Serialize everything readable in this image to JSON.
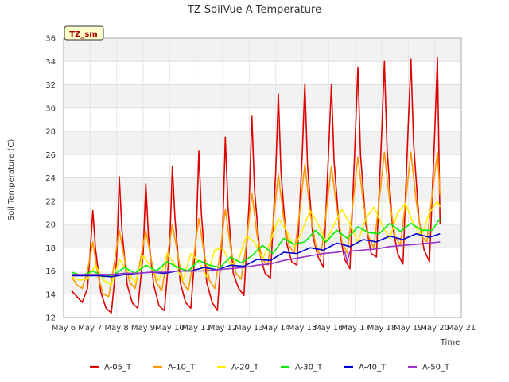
{
  "chart_data": {
    "type": "line",
    "title": "TZ SoilVue A Temperature",
    "xlabel": "Time",
    "ylabel": "Soil Temperature (C)",
    "badge": "TZ_sm",
    "ylim": [
      12,
      36
    ],
    "yticks": [
      12,
      14,
      16,
      18,
      20,
      22,
      24,
      26,
      28,
      30,
      32,
      34,
      36
    ],
    "xlim": [
      6,
      21
    ],
    "xticks": [
      {
        "x": 6,
        "label": "May 6"
      },
      {
        "x": 7,
        "label": "May 7"
      },
      {
        "x": 8,
        "label": "May 8"
      },
      {
        "x": 9,
        "label": "May 9"
      },
      {
        "x": 10,
        "label": "May 10"
      },
      {
        "x": 11,
        "label": "May 11"
      },
      {
        "x": 12,
        "label": "May 12"
      },
      {
        "x": 13,
        "label": "May 13"
      },
      {
        "x": 14,
        "label": "May 14"
      },
      {
        "x": 15,
        "label": "May 15"
      },
      {
        "x": 16,
        "label": "May 16"
      },
      {
        "x": 17,
        "label": "May 17"
      },
      {
        "x": 18,
        "label": "May 18"
      },
      {
        "x": 19,
        "label": "May 19"
      },
      {
        "x": 20,
        "label": "May 20"
      },
      {
        "x": 21,
        "label": "May 21"
      }
    ],
    "grid": true,
    "legend_position": "bottom",
    "series": [
      {
        "name": "A-05_T",
        "color": "#dd0000",
        "x": [
          6.3,
          6.5,
          6.7,
          6.9,
          7.0,
          7.1,
          7.2,
          7.4,
          7.6,
          7.8,
          8.0,
          8.1,
          8.2,
          8.4,
          8.6,
          8.8,
          9.0,
          9.1,
          9.2,
          9.4,
          9.6,
          9.8,
          10.0,
          10.1,
          10.2,
          10.4,
          10.6,
          10.8,
          11.0,
          11.1,
          11.2,
          11.4,
          11.6,
          11.8,
          12.0,
          12.1,
          12.2,
          12.4,
          12.6,
          12.8,
          13.0,
          13.1,
          13.2,
          13.4,
          13.6,
          13.8,
          14.0,
          14.1,
          14.2,
          14.4,
          14.6,
          14.8,
          15.0,
          15.1,
          15.2,
          15.4,
          15.6,
          15.8,
          16.0,
          16.1,
          16.2,
          16.4,
          16.6,
          16.8,
          17.0,
          17.1,
          17.2,
          17.4,
          17.6,
          17.8,
          18.0,
          18.1,
          18.2,
          18.4,
          18.6,
          18.8,
          19.0,
          19.1,
          19.2,
          19.4,
          19.6,
          19.8,
          20.0,
          20.1,
          20.2
        ],
        "y": [
          14.3,
          13.8,
          13.3,
          14.5,
          17.5,
          21.2,
          18.0,
          14.2,
          12.8,
          12.4,
          17.0,
          24.1,
          19.5,
          14.8,
          13.2,
          12.8,
          17.5,
          23.5,
          19.0,
          14.8,
          13.0,
          12.6,
          18.0,
          25.0,
          20.5,
          15.0,
          13.3,
          12.8,
          19.0,
          26.3,
          20.8,
          15.0,
          13.3,
          12.6,
          19.5,
          27.5,
          21.5,
          15.8,
          14.5,
          13.9,
          22.0,
          29.3,
          23.0,
          17.5,
          15.8,
          15.4,
          24.5,
          31.2,
          24.5,
          18.5,
          16.8,
          16.5,
          26.0,
          32.1,
          25.0,
          19.0,
          17.2,
          16.3,
          26.5,
          32.0,
          25.5,
          19.5,
          17.0,
          16.2,
          27.5,
          33.5,
          26.0,
          20.0,
          17.5,
          17.2,
          28.0,
          34.0,
          26.5,
          20.0,
          17.5,
          16.6,
          28.5,
          34.2,
          27.0,
          20.5,
          17.8,
          16.8,
          28.0,
          34.3,
          20.0
        ]
      },
      {
        "name": "A-10_T",
        "color": "#ff9900",
        "x": [
          6.3,
          6.5,
          6.7,
          6.9,
          7.1,
          7.3,
          7.5,
          7.7,
          7.9,
          8.1,
          8.3,
          8.5,
          8.7,
          8.9,
          9.1,
          9.3,
          9.5,
          9.7,
          9.9,
          10.1,
          10.3,
          10.5,
          10.7,
          10.9,
          11.1,
          11.3,
          11.5,
          11.7,
          11.9,
          12.1,
          12.3,
          12.5,
          12.7,
          12.9,
          13.1,
          13.3,
          13.5,
          13.7,
          13.9,
          14.1,
          14.3,
          14.5,
          14.7,
          14.9,
          15.1,
          15.3,
          15.5,
          15.7,
          15.9,
          16.1,
          16.3,
          16.5,
          16.7,
          16.9,
          17.1,
          17.3,
          17.5,
          17.7,
          17.9,
          18.1,
          18.3,
          18.5,
          18.7,
          18.9,
          19.1,
          19.3,
          19.5,
          19.7,
          19.9,
          20.1,
          20.2
        ],
        "y": [
          15.5,
          14.8,
          14.5,
          16.0,
          18.5,
          15.5,
          14.0,
          13.8,
          16.5,
          19.5,
          17.0,
          15.0,
          14.5,
          17.0,
          19.5,
          17.0,
          15.0,
          14.3,
          17.0,
          20.0,
          17.5,
          15.0,
          14.3,
          17.0,
          20.5,
          17.5,
          15.2,
          14.5,
          17.5,
          21.3,
          18.0,
          15.8,
          15.3,
          18.5,
          22.7,
          19.0,
          17.0,
          16.5,
          20.0,
          24.3,
          20.5,
          18.2,
          17.5,
          21.0,
          25.2,
          21.0,
          18.3,
          17.2,
          21.0,
          25.0,
          21.5,
          18.5,
          17.5,
          21.5,
          25.8,
          22.0,
          19.0,
          18.0,
          22.0,
          26.2,
          22.0,
          19.0,
          18.2,
          22.0,
          26.2,
          22.0,
          19.0,
          18.5,
          22.5,
          26.2,
          22.5
        ]
      },
      {
        "name": "A-20_T",
        "color": "#ffee00",
        "x": [
          6.3,
          6.6,
          6.9,
          7.2,
          7.5,
          7.8,
          8.1,
          8.4,
          8.7,
          9.0,
          9.3,
          9.6,
          9.9,
          10.2,
          10.5,
          10.8,
          11.1,
          11.4,
          11.7,
          12.0,
          12.3,
          12.6,
          12.9,
          13.2,
          13.5,
          13.8,
          14.1,
          14.4,
          14.7,
          15.0,
          15.3,
          15.6,
          15.9,
          16.2,
          16.5,
          16.8,
          17.1,
          17.4,
          17.7,
          18.0,
          18.3,
          18.6,
          18.9,
          19.2,
          19.5,
          19.8,
          20.1,
          20.2
        ],
        "y": [
          15.5,
          15.2,
          15.3,
          16.5,
          15.2,
          14.8,
          17.0,
          16.0,
          15.0,
          17.3,
          16.3,
          15.2,
          17.5,
          16.5,
          15.2,
          17.5,
          16.8,
          15.5,
          17.8,
          18.0,
          16.5,
          17.0,
          19.0,
          18.5,
          17.0,
          18.5,
          20.5,
          19.5,
          18.0,
          19.5,
          21.2,
          20.0,
          18.5,
          20.0,
          21.3,
          20.0,
          18.5,
          20.5,
          21.5,
          20.0,
          18.8,
          21.0,
          21.8,
          20.0,
          19.0,
          21.0,
          22.0,
          21.5
        ]
      },
      {
        "name": "A-30_T",
        "color": "#00ee00",
        "x": [
          6.3,
          6.7,
          7.1,
          7.5,
          7.9,
          8.3,
          8.7,
          9.1,
          9.5,
          9.9,
          10.3,
          10.7,
          11.1,
          11.5,
          11.9,
          12.3,
          12.7,
          13.1,
          13.5,
          13.9,
          14.3,
          14.7,
          15.1,
          15.5,
          15.9,
          16.3,
          16.7,
          17.1,
          17.5,
          17.9,
          18.3,
          18.7,
          19.1,
          19.5,
          19.9,
          20.2
        ],
        "y": [
          15.9,
          15.6,
          16.0,
          15.5,
          15.7,
          16.3,
          15.8,
          16.5,
          16.0,
          16.8,
          16.3,
          16.0,
          16.9,
          16.5,
          16.3,
          17.2,
          16.7,
          17.3,
          18.2,
          17.5,
          18.8,
          18.3,
          18.5,
          19.5,
          18.5,
          19.5,
          18.8,
          19.8,
          19.3,
          19.2,
          20.1,
          19.4,
          20.1,
          19.5,
          19.5,
          20.5
        ]
      },
      {
        "name": "A-40_T",
        "color": "#0000cc",
        "x": [
          6.3,
          6.8,
          7.3,
          7.8,
          8.3,
          8.8,
          9.3,
          9.8,
          10.3,
          10.8,
          11.3,
          11.8,
          12.3,
          12.8,
          13.3,
          13.8,
          14.3,
          14.8,
          15.3,
          15.8,
          16.3,
          16.8,
          17.3,
          17.8,
          18.3,
          18.8,
          19.3,
          19.8,
          20.2
        ],
        "y": [
          15.6,
          15.6,
          15.6,
          15.5,
          15.7,
          15.8,
          15.9,
          15.8,
          16.0,
          16.0,
          16.3,
          16.1,
          16.5,
          16.4,
          17.0,
          16.9,
          17.6,
          17.5,
          18.0,
          17.8,
          18.4,
          18.1,
          18.7,
          18.5,
          19.0,
          18.7,
          19.2,
          18.9,
          19.2
        ]
      },
      {
        "name": "A-50_T",
        "color": "#9933cc",
        "x": [
          6.3,
          6.8,
          7.3,
          7.8,
          8.3,
          8.8,
          9.3,
          9.8,
          10.3,
          10.8,
          11.3,
          11.8,
          12.3,
          12.8,
          13.3,
          13.8,
          14.3,
          14.8,
          15.3,
          15.8,
          16.3,
          16.6,
          16.7,
          16.8,
          17.3,
          17.8,
          18.3,
          18.8,
          19.3,
          19.8,
          20.2
        ],
        "y": [
          15.7,
          15.7,
          15.7,
          15.7,
          15.8,
          15.8,
          15.9,
          15.9,
          16.0,
          16.0,
          16.0,
          16.1,
          16.2,
          16.3,
          16.5,
          16.6,
          16.9,
          17.1,
          17.3,
          17.5,
          17.6,
          17.7,
          16.8,
          17.7,
          17.8,
          17.9,
          18.1,
          18.2,
          18.3,
          18.4,
          18.5
        ]
      }
    ]
  }
}
